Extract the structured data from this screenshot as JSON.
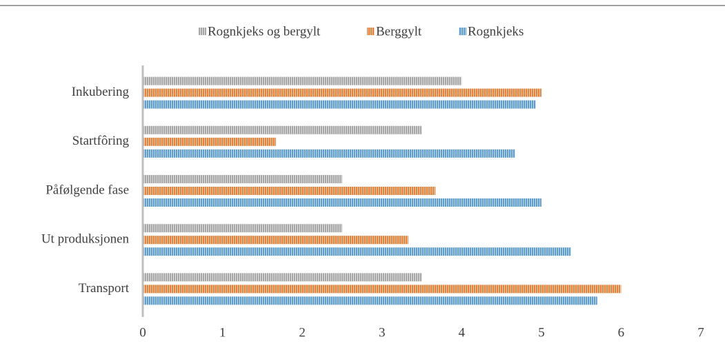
{
  "chart_data": {
    "type": "hbar",
    "categories": [
      "Inkubering",
      "Startfôring",
      "Påfølgende fase",
      "Ut produksjonen",
      "Transport"
    ],
    "series": [
      {
        "name": "Rognkjeks og bergylt",
        "color": "#a5a5a5",
        "values": [
          4.0,
          3.5,
          2.5,
          2.5,
          3.5
        ]
      },
      {
        "name": "Berggylt",
        "color": "#ed7d31",
        "values": [
          5.0,
          1.67,
          3.67,
          3.33,
          6.0
        ]
      },
      {
        "name": "Rognkjeks",
        "color": "#5b9bd5",
        "values": [
          4.93,
          4.67,
          5.0,
          5.37,
          5.7
        ]
      }
    ],
    "xlim": [
      0,
      7
    ],
    "xticks": [
      0,
      1,
      2,
      3,
      4,
      5,
      6,
      7
    ],
    "legend": "top"
  }
}
